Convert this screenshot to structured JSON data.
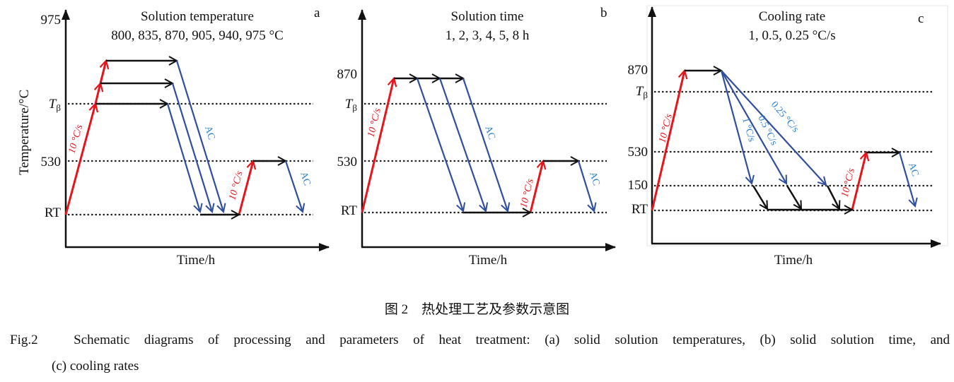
{
  "colors": {
    "heating": "#e8141c",
    "cooling": "#2f4f9e",
    "cooling_label": "#2a7fd0",
    "hold": "#111111"
  },
  "panels": [
    {
      "letter": "a",
      "title": "Solution temperature",
      "subtitle": "800, 835, 870, 905, 940, 975 °C",
      "ylabel": "Temperature/°C",
      "xlabel": "Time/h",
      "ticks": {
        "top": "975",
        "tbeta": "T",
        "tbeta_sub": "β",
        "mid": "530",
        "rt": "RT"
      },
      "labels": {
        "heat1": "10 °C/s",
        "ac1": "AC",
        "heat2": "10 °C/s",
        "ac2": "AC"
      }
    },
    {
      "letter": "b",
      "title": "Solution time",
      "subtitle": "1, 2, 3, 4, 5, 8 h",
      "xlabel": "Time/h",
      "ticks": {
        "top": "870",
        "tbeta": "T",
        "tbeta_sub": "β",
        "mid": "530",
        "rt": "RT"
      },
      "labels": {
        "heat1": "10 °C/s",
        "ac1": "AC",
        "heat2": "10 °C/s",
        "ac2": "AC"
      }
    },
    {
      "letter": "c",
      "title": "Cooling rate",
      "subtitle": "1, 0.5, 0.25 °C/s",
      "xlabel": "Time/h",
      "ticks": {
        "top": "870",
        "tbeta": "T",
        "tbeta_sub": "β",
        "mid": "530",
        "low": "150",
        "rt": "RT"
      },
      "labels": {
        "heat1": "10 °C/s",
        "rate1": "1 °C/s",
        "rate2": "0.5 °C/s",
        "rate3": "0.25 °C/s",
        "heat2": "10 °C/s",
        "ac2": "AC"
      }
    }
  ],
  "caption": {
    "cn": "图 2　热处理工艺及参数示意图",
    "en_line1": "Fig.2　Schematic diagrams of processing and parameters of heat treatment: (a) solid solution temperatures, (b) solid solution time, and",
    "en_line2": "(c) cooling rates"
  }
}
